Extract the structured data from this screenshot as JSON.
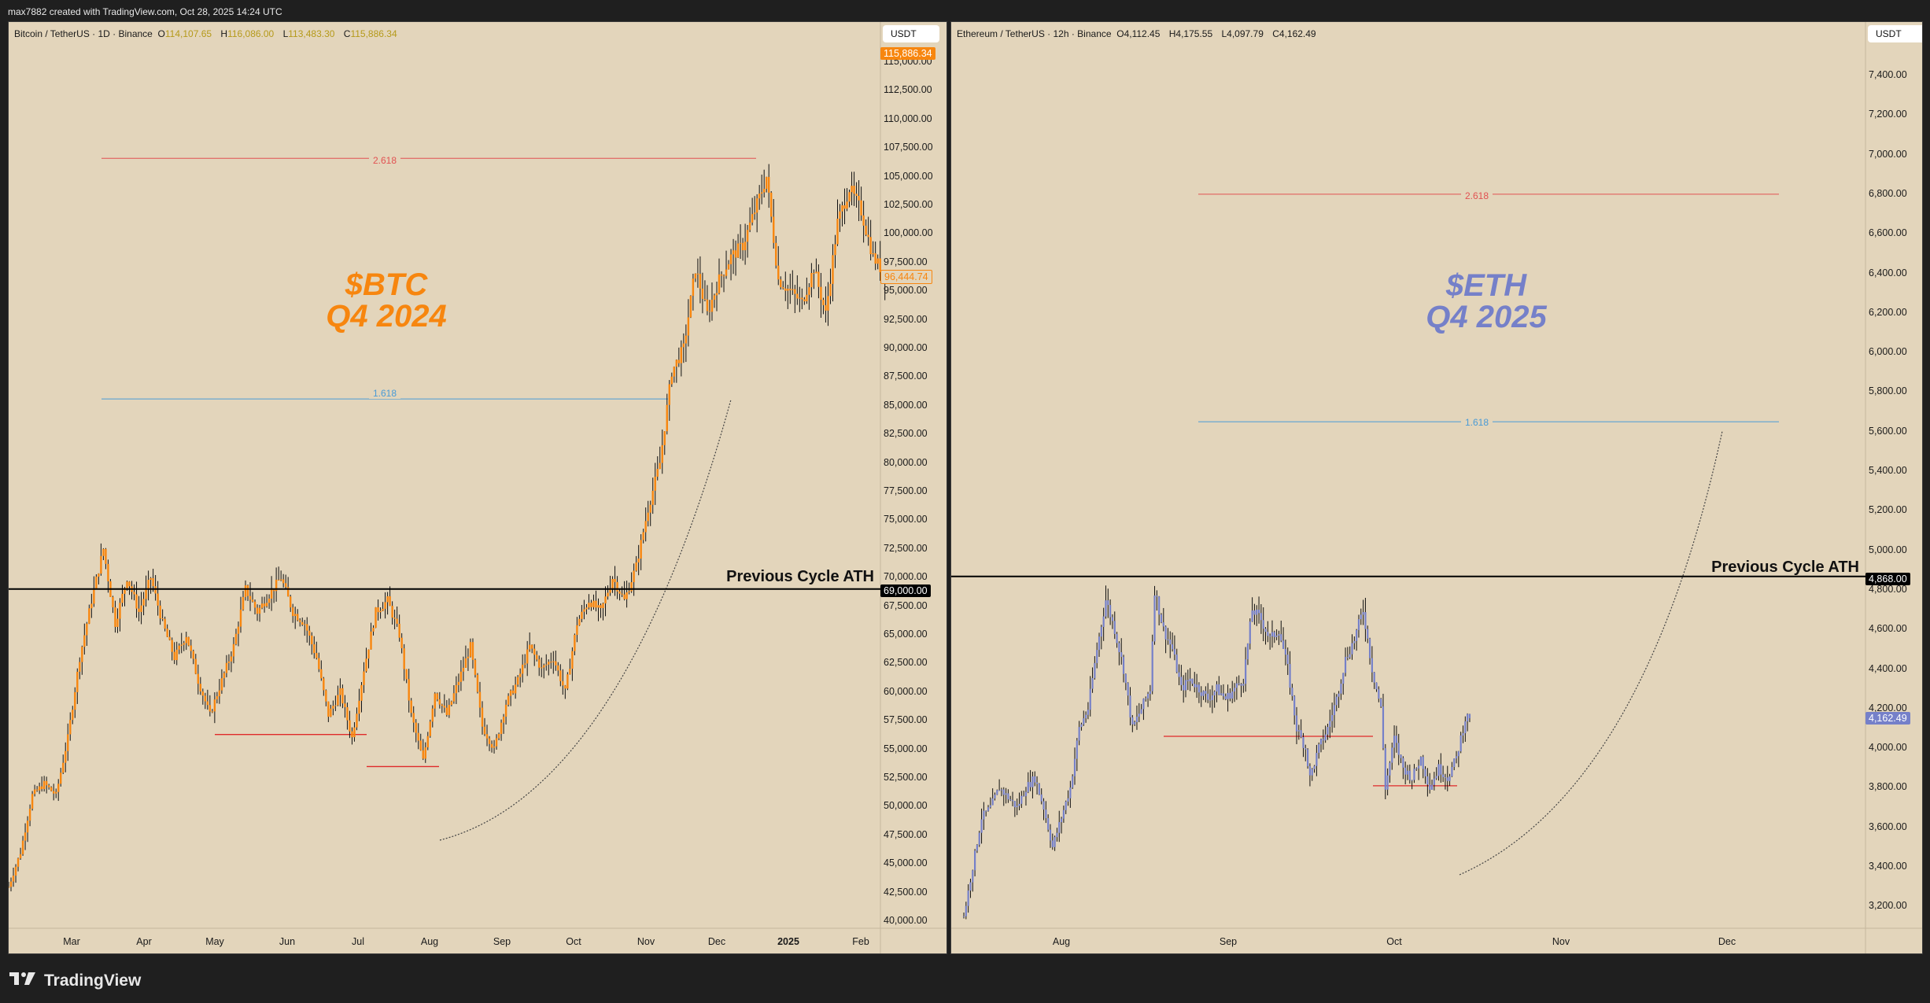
{
  "header": {
    "attribution": "max7882 created with TradingView.com, Oct 28, 2025 14:24 UTC"
  },
  "footer": {
    "brand": "TradingView",
    "icon": "tradingview-logo-icon"
  },
  "colors": {
    "bg": "#e3d5bb",
    "btc": "#f7860f",
    "eth": "#7580c9",
    "fib_red": "#e25252",
    "fib_blue": "#4a9bd6",
    "support_red": "#e02a2a",
    "ath_line": "#000000"
  },
  "btc": {
    "legend": {
      "symbol": "Bitcoin / TetherUS · 1D · Binance",
      "o_label": "O",
      "o": "114,107.65",
      "h_label": "H",
      "h": "116,086.00",
      "l_label": "L",
      "l": "113,483.30",
      "c_label": "C",
      "c": "115,886.34"
    },
    "currency": "USDT",
    "title_line1": "$BTC",
    "title_line2": "Q4 2024",
    "ath_label": "Previous Cycle ATH",
    "ath_price": "69,000.00",
    "last_price_tag": "115,886.34",
    "cursor_price_tag": "96,444.74",
    "fib_upper": "2.618",
    "fib_lower": "1.618",
    "y_ticks": [
      "115,000.00",
      "112,500.00",
      "110,000.00",
      "107,500.00",
      "105,000.00",
      "102,500.00",
      "100,000.00",
      "97,500.00",
      "95,000.00",
      "92,500.00",
      "90,000.00",
      "87,500.00",
      "85,000.00",
      "82,500.00",
      "80,000.00",
      "77,500.00",
      "75,000.00",
      "72,500.00",
      "70,000.00",
      "67,500.00",
      "65,000.00",
      "62,500.00",
      "60,000.00",
      "57,500.00",
      "55,000.00",
      "52,500.00",
      "50,000.00",
      "47,500.00",
      "45,000.00",
      "42,500.00",
      "40,000.00"
    ],
    "x_ticks": [
      "Mar",
      "Apr",
      "May",
      "Jun",
      "Jul",
      "Aug",
      "Sep",
      "Oct",
      "Nov",
      "Dec",
      "2025",
      "Feb"
    ]
  },
  "eth": {
    "legend": {
      "symbol": "Ethereum / TetherUS · 12h · Binance",
      "o_label": "O",
      "o": "4,112.45",
      "h_label": "H",
      "h": "4,175.55",
      "l_label": "L",
      "l": "4,097.79",
      "c_label": "C",
      "c": "4,162.49"
    },
    "currency": "USDT",
    "title_line1": "$ETH",
    "title_line2": "Q4 2025",
    "ath_label": "Previous Cycle ATH",
    "ath_price": "4,868.00",
    "last_price_tag": "4,162.49",
    "fib_upper": "2.618",
    "fib_lower": "1.618",
    "y_ticks": [
      "7,400.00",
      "7,200.00",
      "7,000.00",
      "6,800.00",
      "6,600.00",
      "6,400.00",
      "6,200.00",
      "6,000.00",
      "5,800.00",
      "5,600.00",
      "5,400.00",
      "5,200.00",
      "5,000.00",
      "4,800.00",
      "4,600.00",
      "4,400.00",
      "4,200.00",
      "4,000.00",
      "3,800.00",
      "3,600.00",
      "3,400.00",
      "3,200.00"
    ],
    "x_ticks": [
      "Aug",
      "Sep",
      "Oct",
      "Nov",
      "Dec"
    ]
  },
  "chart_data": [
    {
      "type": "candlestick",
      "title": "Bitcoin / TetherUS · 1D · Binance",
      "annotation": "$BTC Q4 2024",
      "ylabel": "USDT",
      "ylim": [
        39000,
        117000
      ],
      "categories": [
        "Mar",
        "Apr",
        "May",
        "Jun",
        "Jul",
        "Aug",
        "Sep",
        "Oct",
        "Nov",
        "Dec",
        "2025",
        "Feb"
      ],
      "close_path": [
        [
          0,
          43000
        ],
        [
          5,
          46000
        ],
        [
          10,
          51000
        ],
        [
          15,
          52000
        ],
        [
          20,
          51000
        ],
        [
          25,
          56000
        ],
        [
          30,
          63000
        ],
        [
          35,
          68000
        ],
        [
          40,
          72500
        ],
        [
          45,
          66000
        ],
        [
          50,
          70000
        ],
        [
          55,
          67000
        ],
        [
          60,
          70000
        ],
        [
          65,
          66000
        ],
        [
          70,
          63000
        ],
        [
          75,
          65000
        ],
        [
          80,
          61000
        ],
        [
          85,
          58000
        ],
        [
          90,
          61000
        ],
        [
          95,
          64000
        ],
        [
          100,
          69000
        ],
        [
          105,
          67000
        ],
        [
          110,
          68500
        ],
        [
          115,
          70000
        ],
        [
          120,
          67000
        ],
        [
          125,
          66000
        ],
        [
          130,
          63000
        ],
        [
          135,
          58000
        ],
        [
          140,
          60000
        ],
        [
          145,
          56000
        ],
        [
          150,
          62000
        ],
        [
          155,
          67000
        ],
        [
          160,
          68000
        ],
        [
          165,
          65000
        ],
        [
          170,
          58000
        ],
        [
          175,
          54000
        ],
        [
          180,
          60000
        ],
        [
          185,
          58000
        ],
        [
          190,
          61000
        ],
        [
          195,
          64000
        ],
        [
          200,
          57000
        ],
        [
          205,
          55000
        ],
        [
          210,
          59000
        ],
        [
          215,
          61000
        ],
        [
          220,
          64000
        ],
        [
          225,
          62000
        ],
        [
          230,
          63000
        ],
        [
          235,
          60000
        ],
        [
          240,
          66000
        ],
        [
          245,
          68000
        ],
        [
          250,
          67000
        ],
        [
          255,
          70000
        ],
        [
          260,
          68000
        ],
        [
          265,
          71000
        ],
        [
          270,
          76000
        ],
        [
          275,
          80000
        ],
        [
          280,
          88000
        ],
        [
          285,
          90000
        ],
        [
          290,
          97000
        ],
        [
          295,
          93000
        ],
        [
          300,
          96000
        ],
        [
          305,
          98000
        ],
        [
          310,
          99000
        ],
        [
          315,
          102000
        ],
        [
          320,
          105000
        ],
        [
          325,
          96000
        ],
        [
          330,
          95000
        ],
        [
          335,
          94000
        ],
        [
          340,
          97000
        ],
        [
          345,
          93000
        ],
        [
          350,
          101000
        ],
        [
          355,
          104000
        ],
        [
          360,
          102000
        ],
        [
          365,
          98000
        ],
        [
          370,
          96444
        ]
      ],
      "horizontal_lines": [
        {
          "label": "2.618",
          "price": 106600
        },
        {
          "label": "1.618",
          "price": 85600
        },
        {
          "label": "Previous Cycle ATH",
          "price": 69000
        }
      ],
      "last_price": 115886.34
    },
    {
      "type": "candlestick",
      "title": "Ethereum / TetherUS · 12h · Binance",
      "annotation": "$ETH Q4 2025",
      "ylabel": "USDT",
      "ylim": [
        3150,
        7500
      ],
      "categories": [
        "Aug",
        "Sep",
        "Oct",
        "Nov",
        "Dec"
      ],
      "close_path": [
        [
          0,
          3150
        ],
        [
          4,
          3400
        ],
        [
          8,
          3650
        ],
        [
          12,
          3700
        ],
        [
          16,
          3800
        ],
        [
          20,
          3750
        ],
        [
          24,
          3700
        ],
        [
          28,
          3800
        ],
        [
          32,
          3850
        ],
        [
          36,
          3700
        ],
        [
          40,
          3500
        ],
        [
          44,
          3650
        ],
        [
          48,
          3800
        ],
        [
          52,
          4100
        ],
        [
          56,
          4200
        ],
        [
          60,
          4500
        ],
        [
          64,
          4750
        ],
        [
          68,
          4600
        ],
        [
          72,
          4400
        ],
        [
          76,
          4100
        ],
        [
          80,
          4200
        ],
        [
          84,
          4300
        ],
        [
          86,
          4800
        ],
        [
          90,
          4600
        ],
        [
          94,
          4500
        ],
        [
          98,
          4300
        ],
        [
          102,
          4350
        ],
        [
          106,
          4300
        ],
        [
          110,
          4250
        ],
        [
          114,
          4300
        ],
        [
          118,
          4250
        ],
        [
          122,
          4300
        ],
        [
          126,
          4350
        ],
        [
          130,
          4700
        ],
        [
          134,
          4650
        ],
        [
          138,
          4550
        ],
        [
          142,
          4600
        ],
        [
          146,
          4400
        ],
        [
          150,
          4100
        ],
        [
          154,
          4000
        ],
        [
          156,
          3850
        ],
        [
          160,
          4000
        ],
        [
          164,
          4100
        ],
        [
          168,
          4250
        ],
        [
          172,
          4450
        ],
        [
          176,
          4550
        ],
        [
          180,
          4700
        ],
        [
          184,
          4400
        ],
        [
          188,
          4200
        ],
        [
          190,
          3800
        ],
        [
          194,
          4050
        ],
        [
          198,
          3900
        ],
        [
          202,
          3850
        ],
        [
          206,
          3950
        ],
        [
          210,
          3800
        ],
        [
          214,
          3900
        ],
        [
          218,
          3850
        ],
        [
          222,
          3950
        ],
        [
          226,
          4150
        ],
        [
          228,
          4162
        ]
      ],
      "horizontal_lines": [
        {
          "label": "2.618",
          "price": 6800
        },
        {
          "label": "1.618",
          "price": 5650
        },
        {
          "label": "Previous Cycle ATH",
          "price": 4868
        }
      ],
      "last_price": 4162.49
    }
  ]
}
